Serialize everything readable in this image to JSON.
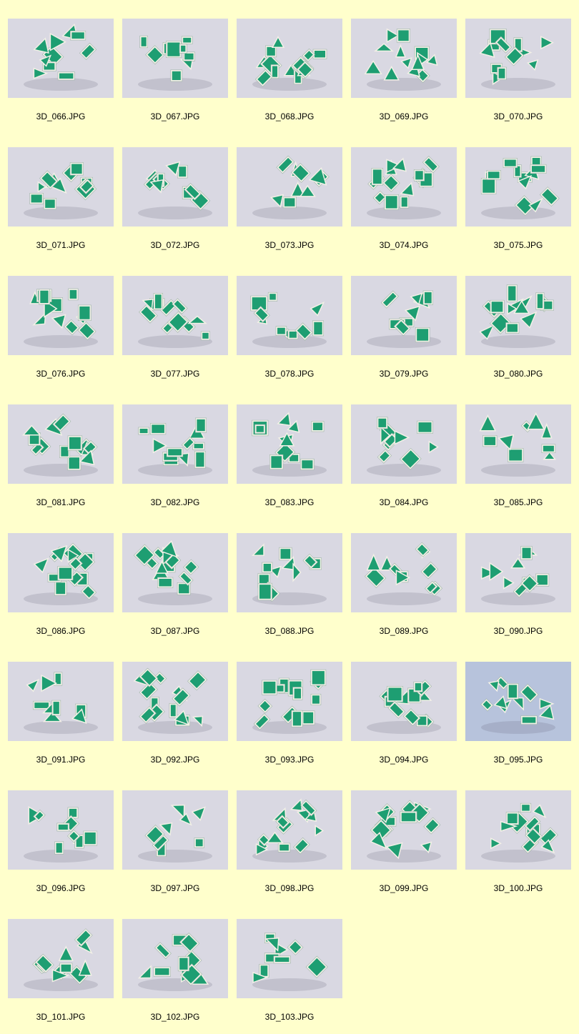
{
  "gallery": {
    "colors": {
      "page_background": "#ffffcc",
      "puzzle_green": "#1e9e72",
      "puzzle_white": "#f2f0e6",
      "photo_background": "#d9d8e2",
      "photo_background_blue": "#b7c3dc",
      "caption_text": "#000000"
    },
    "items": [
      {
        "caption": "3D_066.JPG"
      },
      {
        "caption": "3D_067.JPG"
      },
      {
        "caption": "3D_068.JPG"
      },
      {
        "caption": "3D_069.JPG"
      },
      {
        "caption": "3D_070.JPG"
      },
      {
        "caption": "3D_071.JPG"
      },
      {
        "caption": "3D_072.JPG"
      },
      {
        "caption": "3D_073.JPG"
      },
      {
        "caption": "3D_074.JPG"
      },
      {
        "caption": "3D_075.JPG"
      },
      {
        "caption": "3D_076.JPG"
      },
      {
        "caption": "3D_077.JPG"
      },
      {
        "caption": "3D_078.JPG"
      },
      {
        "caption": "3D_079.JPG"
      },
      {
        "caption": "3D_080.JPG"
      },
      {
        "caption": "3D_081.JPG"
      },
      {
        "caption": "3D_082.JPG"
      },
      {
        "caption": "3D_083.JPG"
      },
      {
        "caption": "3D_084.JPG"
      },
      {
        "caption": "3D_085.JPG"
      },
      {
        "caption": "3D_086.JPG"
      },
      {
        "caption": "3D_087.JPG"
      },
      {
        "caption": "3D_088.JPG"
      },
      {
        "caption": "3D_089.JPG"
      },
      {
        "caption": "3D_090.JPG"
      },
      {
        "caption": "3D_091.JPG"
      },
      {
        "caption": "3D_092.JPG"
      },
      {
        "caption": "3D_093.JPG"
      },
      {
        "caption": "3D_094.JPG"
      },
      {
        "caption": "3D_095.JPG"
      },
      {
        "caption": "3D_096.JPG"
      },
      {
        "caption": "3D_097.JPG"
      },
      {
        "caption": "3D_098.JPG"
      },
      {
        "caption": "3D_099.JPG"
      },
      {
        "caption": "3D_100.JPG"
      },
      {
        "caption": "3D_101.JPG"
      },
      {
        "caption": "3D_102.JPG"
      },
      {
        "caption": "3D_103.JPG"
      }
    ]
  }
}
